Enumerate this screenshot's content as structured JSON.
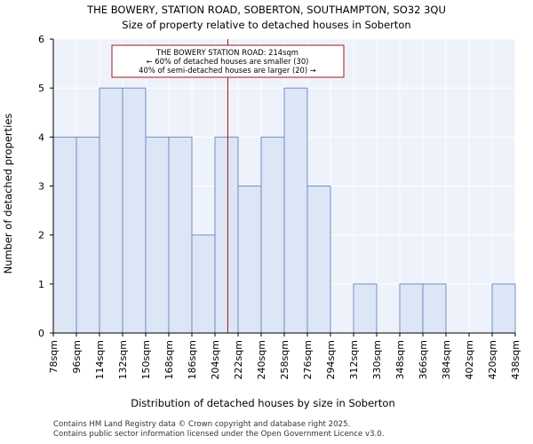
{
  "chart_data": {
    "type": "bar",
    "title_lines": [
      "THE BOWERY, STATION ROAD, SOBERTON, SOUTHAMPTON, SO32 3QU",
      "Size of property relative to detached houses in Soberton"
    ],
    "xlabel": "Distribution of detached houses by size in Soberton",
    "ylabel": "Number of detached properties",
    "bin_edges": [
      78,
      96,
      114,
      132,
      150,
      168,
      186,
      204,
      222,
      240,
      258,
      276,
      294,
      312,
      330,
      348,
      366,
      384,
      402,
      420,
      438
    ],
    "tick_labels": [
      "78sqm",
      "96sqm",
      "114sqm",
      "132sqm",
      "150sqm",
      "168sqm",
      "186sqm",
      "204sqm",
      "222sqm",
      "240sqm",
      "258sqm",
      "276sqm",
      "294sqm",
      "312sqm",
      "330sqm",
      "348sqm",
      "366sqm",
      "384sqm",
      "402sqm",
      "420sqm",
      "438sqm"
    ],
    "values": [
      4,
      4,
      5,
      5,
      4,
      4,
      2,
      4,
      3,
      4,
      5,
      3,
      0,
      1,
      0,
      1,
      1,
      0,
      0,
      1
    ],
    "ylim": [
      0,
      6
    ],
    "yticks": [
      0,
      1,
      2,
      3,
      4,
      5,
      6
    ],
    "marker": {
      "value": 214,
      "label_lines": [
        "THE BOWERY STATION ROAD: 214sqm",
        "← 60% of detached houses are smaller (30)",
        "40% of semi-detached houses are larger (20) →"
      ]
    },
    "colors": {
      "bar_fill": "#dce6f6",
      "bar_edge": "#6a86c0",
      "plot_bg": "#eef2fb",
      "marker": "#a01818",
      "grid": "#ffffff"
    },
    "grid": true
  },
  "footer": {
    "line1": "Contains HM Land Registry data © Crown copyright and database right 2025.",
    "line2": "Contains public sector information licensed under the Open Government Licence v3.0."
  }
}
